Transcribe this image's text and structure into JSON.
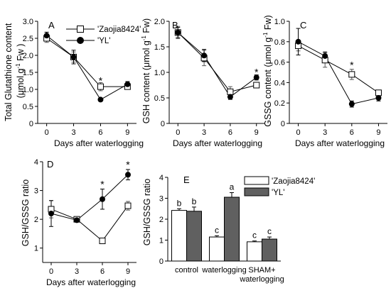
{
  "chart_data": [
    {
      "type": "line",
      "panel_label": "A",
      "ylabel_parts": [
        "Total Glutathione content",
        "(μmol g",
        "-1",
        " Fw )"
      ],
      "xlabel": "Days after waterlogging",
      "x": [
        0,
        3,
        6,
        9
      ],
      "xticks": [
        "0",
        "3",
        "6",
        "9"
      ],
      "ylim": [
        0,
        3
      ],
      "yticks": [
        "0",
        "0.5",
        "1.0",
        "1.5",
        "2.0",
        "2.5",
        "3.0"
      ],
      "series": [
        {
          "name": "'Zaojia8424'",
          "marker": "open-square",
          "values": [
            2.5,
            1.95,
            1.08,
            1.08
          ],
          "errors": [
            0.12,
            0.15,
            0.12,
            0.06
          ]
        },
        {
          "name": "'YL'",
          "marker": "filled-circle",
          "values": [
            2.58,
            1.95,
            0.7,
            1.15
          ],
          "errors": [
            0.1,
            0.2,
            0.04,
            0.08
          ]
        }
      ],
      "annotations": [
        {
          "x": 6,
          "y": 1.28,
          "text": "*"
        }
      ]
    },
    {
      "type": "line",
      "panel_label": "B",
      "ylabel_parts": [
        "GSH content (μmol g",
        "-1",
        " Fw)"
      ],
      "xlabel": "Days after waterlogging",
      "x": [
        0,
        3,
        6,
        9
      ],
      "xticks": [
        "0",
        "3",
        "6",
        "9"
      ],
      "ylim": [
        0,
        2
      ],
      "yticks": [
        "0",
        "0.5",
        "1.0",
        "1.5",
        "2.0"
      ],
      "series": [
        {
          "name": "'Zaojia8424'",
          "marker": "open-square",
          "values": [
            1.78,
            1.28,
            0.62,
            0.75
          ],
          "errors": [
            0.12,
            0.15,
            0.1,
            0.05
          ]
        },
        {
          "name": "'YL'",
          "marker": "filled-circle",
          "values": [
            1.78,
            1.33,
            0.52,
            0.9
          ],
          "errors": [
            0.1,
            0.12,
            0.05,
            0.05
          ]
        }
      ],
      "annotations": [
        {
          "x": 9,
          "y": 1.02,
          "text": "*"
        }
      ]
    },
    {
      "type": "line",
      "panel_label": "C",
      "ylabel_parts": [
        "GSSG content (μmol g",
        "-1",
        " Fw)"
      ],
      "xlabel": "Days after waterlogging",
      "x": [
        0,
        3,
        6,
        9
      ],
      "xticks": [
        "0",
        "3",
        "6",
        "9"
      ],
      "ylim": [
        0,
        1
      ],
      "yticks": [
        "0",
        "0.2",
        "0.4",
        "0.6",
        "0.8",
        "1.0"
      ],
      "series": [
        {
          "name": "'Zaojia8424'",
          "marker": "open-square",
          "values": [
            0.76,
            0.62,
            0.48,
            0.3
          ],
          "errors": [
            0.05,
            0.07,
            0.05,
            0.02
          ]
        },
        {
          "name": "'YL'",
          "marker": "filled-circle",
          "values": [
            0.8,
            0.66,
            0.19,
            0.25
          ],
          "errors": [
            0.13,
            0.04,
            0.03,
            0.03
          ]
        }
      ],
      "annotations": [
        {
          "x": 6,
          "y": 0.58,
          "text": "*"
        }
      ]
    },
    {
      "type": "line",
      "panel_label": "D",
      "ylabel": "GSH/GSSG ratio",
      "xlabel": "Days after waterlogging",
      "x": [
        0,
        3,
        6,
        9
      ],
      "xticks": [
        "0",
        "3",
        "6",
        "9"
      ],
      "ylim": [
        0.5,
        4
      ],
      "yticks": [
        "1",
        "2",
        "3",
        "4"
      ],
      "series": [
        {
          "name": "'Zaojia8424'",
          "marker": "open-square",
          "values": [
            2.35,
            2.0,
            1.25,
            2.47
          ],
          "errors": [
            0.3,
            0.05,
            0.04,
            0.15
          ]
        },
        {
          "name": "'YL'",
          "marker": "filled-circle",
          "values": [
            2.2,
            1.97,
            2.7,
            3.55
          ],
          "errors": [
            0.45,
            0.05,
            0.35,
            0.18
          ]
        }
      ],
      "annotations": [
        {
          "x": 6,
          "y": 3.25,
          "text": "*"
        },
        {
          "x": 9,
          "y": 3.92,
          "text": "*"
        }
      ]
    },
    {
      "type": "bar",
      "panel_label": "E",
      "ylabel": "GSH/GSSG ratio",
      "categories": [
        "control",
        "waterlogging",
        "SHAM+\nwaterlogging"
      ],
      "ylim": [
        0,
        4
      ],
      "yticks": [
        "0",
        "1",
        "2",
        "3",
        "4"
      ],
      "series": [
        {
          "name": "'Zaojia8424'",
          "color": "#ffffff",
          "values": [
            2.42,
            1.15,
            0.92
          ],
          "errors": [
            0.08,
            0.06,
            0.04
          ],
          "letters": [
            "b",
            "c",
            "c"
          ]
        },
        {
          "name": "'YL'",
          "color": "#606060",
          "values": [
            2.38,
            3.05,
            1.05
          ],
          "errors": [
            0.2,
            0.22,
            0.1
          ],
          "letters": [
            "b",
            "a",
            "c"
          ]
        }
      ],
      "legend": "top-right"
    }
  ]
}
